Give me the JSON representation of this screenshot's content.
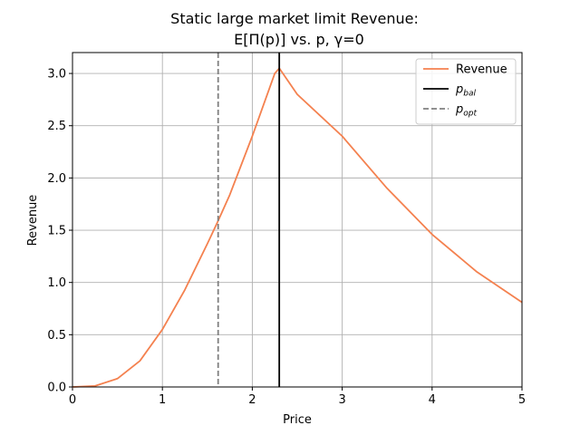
{
  "chart_data": {
    "type": "line",
    "title_line1": "Static large market limit Revenue:",
    "title_line2": "E[Π(p)] vs. p, γ=0",
    "xlabel": "Price",
    "ylabel": "Revenue",
    "xlim": [
      0,
      5
    ],
    "ylim": [
      0,
      3.2
    ],
    "xticks": [
      0,
      1,
      2,
      3,
      4,
      5
    ],
    "xtick_labels": [
      "0",
      "1",
      "2",
      "3",
      "4",
      "5"
    ],
    "yticks": [
      0,
      0.5,
      1,
      1.5,
      2,
      2.5,
      3
    ],
    "ytick_labels": [
      "0.0",
      "0.5",
      "1.0",
      "1.5",
      "2.0",
      "2.5",
      "3.0"
    ],
    "grid": true,
    "legend_position": "top-right",
    "series": [
      {
        "name": "Revenue",
        "color": "#f4814f",
        "x": [
          0,
          0.25,
          0.5,
          0.75,
          1.0,
          1.25,
          1.5,
          1.62,
          1.75,
          2.0,
          2.25,
          2.3,
          2.5,
          3.0,
          3.5,
          4.0,
          4.5,
          5.0
        ],
        "y": [
          0,
          0.01,
          0.08,
          0.25,
          0.55,
          0.93,
          1.37,
          1.59,
          1.84,
          2.4,
          3.0,
          3.05,
          2.8,
          2.4,
          1.9,
          1.46,
          1.1,
          0.81
        ]
      }
    ],
    "vlines": [
      {
        "name": "p_bal",
        "legend_base": "p",
        "legend_sub": "bal",
        "x": 2.3,
        "color": "#000000",
        "style": "solid"
      },
      {
        "name": "p_opt",
        "legend_base": "p",
        "legend_sub": "opt",
        "x": 1.62,
        "color": "#808080",
        "style": "dashed"
      }
    ]
  }
}
